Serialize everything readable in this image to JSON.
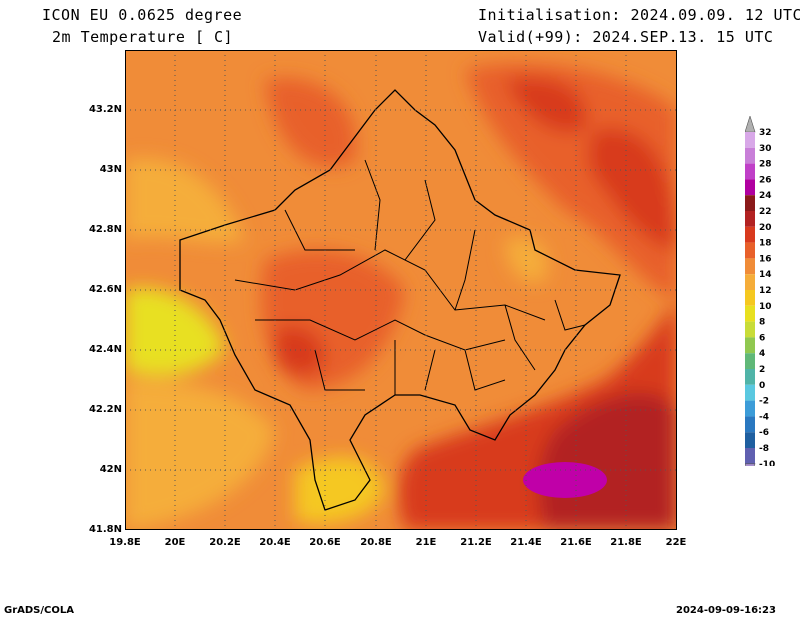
{
  "header": {
    "model": "ICON EU 0.0625 degree",
    "variable": "2m Temperature [ C]",
    "init": "Initialisation: 2024.09.09. 12 UTC",
    "valid": "Valid(+99): 2024.SEP.13. 15 UTC"
  },
  "axes": {
    "lon_labels": [
      "19.8E",
      "20E",
      "20.2E",
      "20.4E",
      "20.6E",
      "20.8E",
      "21E",
      "21.2E",
      "21.4E",
      "21.6E",
      "21.8E",
      "22E"
    ],
    "lat_labels": [
      "43.2N",
      "43N",
      "42.8N",
      "42.6N",
      "42.4N",
      "42.2N",
      "42N",
      "41.8N"
    ]
  },
  "legend": {
    "labels": [
      "32",
      "30",
      "28",
      "26",
      "24",
      "22",
      "20",
      "18",
      "16",
      "14",
      "12",
      "10",
      "8",
      "6",
      "4",
      "2",
      "0",
      "-2",
      "-4",
      "-6",
      "-8",
      "-10"
    ],
    "colors": [
      "#d8a8e8",
      "#c87fd8",
      "#c040c8",
      "#b000a0",
      "#8b1a1a",
      "#b22222",
      "#d83a1e",
      "#e8602a",
      "#f08c38",
      "#f5ad3a",
      "#f5c820",
      "#e8e020",
      "#c8dc38",
      "#90c850",
      "#60b878",
      "#50b4a8",
      "#5ac8e0",
      "#3c9cd8",
      "#2a78c0",
      "#1f5fa0",
      "#6060b0"
    ]
  },
  "footer": {
    "left": "GrADS/COLA",
    "right": "2024-09-09-16:23"
  }
}
